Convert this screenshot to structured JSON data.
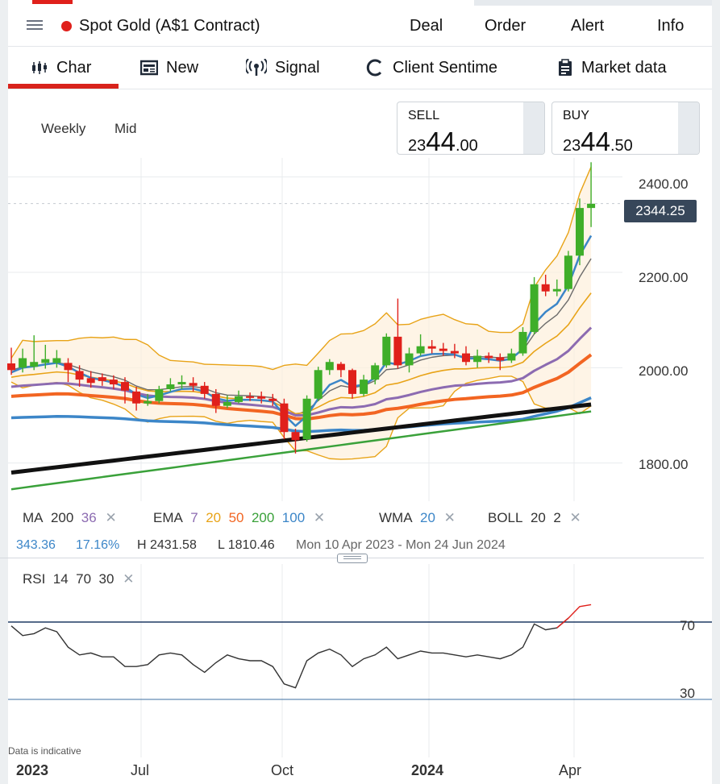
{
  "header": {
    "instrument": "Spot Gold (A$1 Contract)",
    "actions": [
      "Deal",
      "Order",
      "Alert",
      "Info"
    ]
  },
  "tabs": [
    {
      "label": "Char",
      "icon": "candlestick-chart-icon",
      "active": true
    },
    {
      "label": "New",
      "icon": "newspaper-icon"
    },
    {
      "label": "Signal",
      "icon": "signal-broadcast-icon"
    },
    {
      "label": "Client Sentime",
      "icon": "sentiment-gauge-icon"
    },
    {
      "label": "Market data",
      "icon": "clipboard-icon"
    }
  ],
  "controls": {
    "interval": "Weekly",
    "price_type": "Mid"
  },
  "quotes": {
    "sell": {
      "label": "SELL",
      "small": "23",
      "big": "44",
      "tail": ".00"
    },
    "buy": {
      "label": "BUY",
      "small": "23",
      "big": "44",
      "tail": ".50"
    }
  },
  "current_price": "2344.25",
  "price_axis": [
    "2400.00",
    "2200.00",
    "2000.00",
    "1800.00"
  ],
  "time_axis": [
    "2023",
    "Jul",
    "Oct",
    "2024",
    "Apr"
  ],
  "indicators": {
    "ma": {
      "label": "MA",
      "values": [
        "200",
        "36"
      ]
    },
    "ema": {
      "label": "EMA",
      "values": [
        "7",
        "20",
        "50",
        "200",
        "100"
      ]
    },
    "wma": {
      "label": "WMA",
      "values": [
        "20"
      ]
    },
    "boll": {
      "label": "BOLL",
      "values": [
        "20",
        "2"
      ]
    }
  },
  "stats": {
    "change": "343.36",
    "change_pct": "17.16%",
    "high": "H 2431.58",
    "low": "L 1810.46",
    "range": "Mon 10 Apr 2023 - Mon 24 Jun 2024"
  },
  "rsi": {
    "label": "RSI",
    "values": [
      "14",
      "70",
      "30"
    ],
    "levels": [
      "70",
      "30"
    ]
  },
  "disclaimer": "Data is indicative",
  "colors": {
    "up": "#3fae29",
    "down": "#e0201b",
    "ema7": "#e8a317",
    "ema20": "#e8a317",
    "ema50": "#f26522",
    "ema200": "#3aa13a",
    "ema100": "#3c86c8",
    "ma200": "#111111",
    "ma36": "#8c6bb1",
    "boll": "#e8a317",
    "rsi_line": "#1f3a64"
  },
  "chart_data": {
    "type": "candlestick",
    "ylim": [
      1720,
      2440
    ],
    "candles": [
      [
        2009,
        1995,
        2042,
        1985
      ],
      [
        2000,
        2020,
        2040,
        1990
      ],
      [
        2002,
        2012,
        2068,
        1995
      ],
      [
        2010,
        2018,
        2048,
        1998
      ],
      [
        2010,
        2020,
        2037,
        2000
      ],
      [
        2010,
        1995,
        2020,
        1970
      ],
      [
        1993,
        1975,
        2005,
        1960
      ],
      [
        1978,
        1968,
        1993,
        1958
      ],
      [
        1980,
        1972,
        1988,
        1962
      ],
      [
        1975,
        1965,
        1984,
        1955
      ],
      [
        1970,
        1952,
        1980,
        1925
      ],
      [
        1950,
        1925,
        1960,
        1910
      ],
      [
        1925,
        1930,
        1945,
        1920
      ],
      [
        1930,
        1955,
        1962,
        1925
      ],
      [
        1955,
        1965,
        1978,
        1950
      ],
      [
        1965,
        1970,
        1984,
        1955
      ],
      [
        1968,
        1962,
        1980,
        1950
      ],
      [
        1962,
        1945,
        1970,
        1935
      ],
      [
        1945,
        1920,
        1955,
        1905
      ],
      [
        1920,
        1928,
        1942,
        1915
      ],
      [
        1928,
        1940,
        1952,
        1925
      ],
      [
        1940,
        1938,
        1948,
        1930
      ],
      [
        1940,
        1935,
        1950,
        1925
      ],
      [
        1935,
        1930,
        1945,
        1920
      ],
      [
        1925,
        1865,
        1935,
        1850
      ],
      [
        1865,
        1848,
        1872,
        1820
      ],
      [
        1850,
        1935,
        1942,
        1845
      ],
      [
        1935,
        1995,
        2002,
        1930
      ],
      [
        1995,
        2012,
        2018,
        1985
      ],
      [
        2008,
        1995,
        2012,
        1980
      ],
      [
        1995,
        1945,
        1998,
        1935
      ],
      [
        1945,
        1975,
        1985,
        1940
      ],
      [
        1975,
        2005,
        2010,
        1965
      ],
      [
        2005,
        2065,
        2072,
        2000
      ],
      [
        2065,
        2005,
        2145,
        1998
      ],
      [
        2005,
        2030,
        2042,
        1990
      ],
      [
        2030,
        2045,
        2070,
        2025
      ],
      [
        2045,
        2040,
        2058,
        2030
      ],
      [
        2040,
        2035,
        2052,
        2025
      ],
      [
        2035,
        2030,
        2050,
        2020
      ],
      [
        2030,
        2012,
        2045,
        2005
      ],
      [
        2012,
        2025,
        2038,
        2000
      ],
      [
        2025,
        2020,
        2032,
        2010
      ],
      [
        2022,
        2015,
        2030,
        1995
      ],
      [
        2015,
        2030,
        2040,
        2010
      ],
      [
        2030,
        2075,
        2085,
        2025
      ],
      [
        2075,
        2175,
        2190,
        2070
      ],
      [
        2175,
        2160,
        2195,
        2150
      ],
      [
        2160,
        2165,
        2185,
        2150
      ],
      [
        2165,
        2235,
        2245,
        2160
      ],
      [
        2235,
        2335,
        2355,
        2215
      ],
      [
        2335,
        2344,
        2431,
        2295
      ]
    ]
  }
}
